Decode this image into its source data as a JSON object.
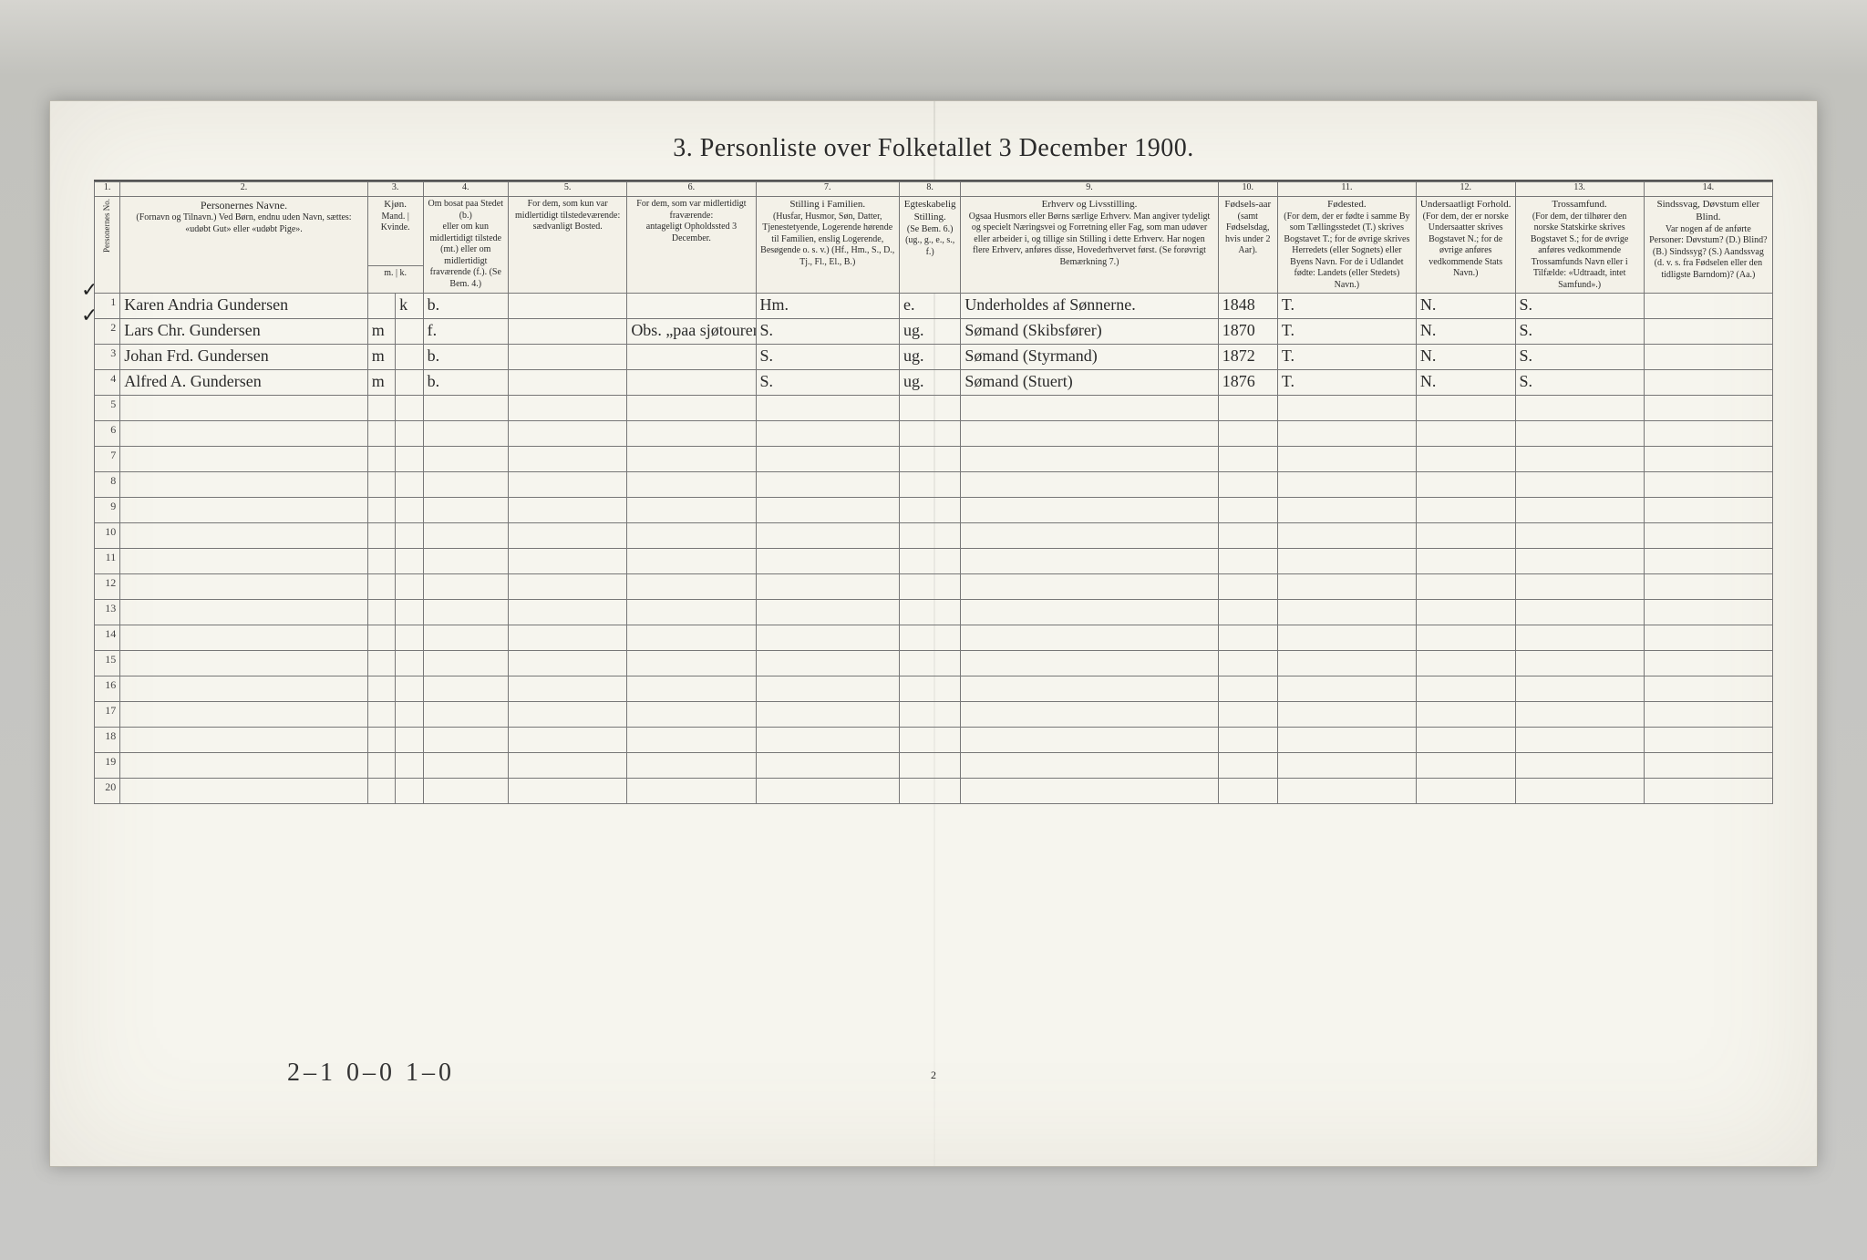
{
  "document": {
    "title": "3. Personliste over Folketallet 3 December 1900.",
    "footnote_tally": "2–1    0–0    1–0",
    "page_number": "2",
    "tick_marks": [
      "✓",
      "✓"
    ]
  },
  "columns": {
    "group_numbers": [
      "1.",
      "2.",
      "3.",
      "4.",
      "5.",
      "6.",
      "7.",
      "8.",
      "9.",
      "10.",
      "11.",
      "12.",
      "13.",
      "14."
    ],
    "headers": {
      "c1": "Personernes No.",
      "c2_title": "Personernes Navne.",
      "c2_sub": "(Fornavn og Tilnavn.)\nVed Børn, endnu uden Navn, sættes: «udøbt Gut» eller «udøbt Pige».",
      "c3_title": "Kjøn.",
      "c3_sub": "Mand. | Kvinde.",
      "c3_foot": "m. | k.",
      "c4_title": "Om bosat paa Stedet (b.)",
      "c4_sub": "eller om kun midlertidigt tilstede (mt.) eller om midlertidigt fraværende (f.). (Se Bem. 4.)",
      "c5_title": "For dem, som kun var midlertidigt tilstedeværende:",
      "c5_sub": "sædvanligt Bosted.",
      "c6_title": "For dem, som var midlertidigt fraværende:",
      "c6_sub": "antageligt Opholdssted 3 December.",
      "c7_title": "Stilling i Familien.",
      "c7_sub": "(Husfar, Husmor, Søn, Datter, Tjenestetyende, Logerende hørende til Familien, enslig Logerende, Besøgende o. s. v.)\n(Hf., Hm., S., D., Tj., Fl., El., B.)",
      "c8_title": "Egteskabelig Stilling.",
      "c8_sub": "(Se Bem. 6.)\n(ug., g., e., s., f.)",
      "c9_title": "Erhverv og Livsstilling.",
      "c9_sub": "Ogsaa Husmors eller Børns særlige Erhverv. Man angiver tydeligt og specielt Næringsvei og Forretning eller Fag, som man udøver eller arbeider i, og tillige sin Stilling i dette Erhverv. Har nogen flere Erhverv, anføres disse, Hovederhvervet først.\n(Se forøvrigt Bemærkning 7.)",
      "c10_title": "Fødsels-aar",
      "c10_sub": "(samt Fødselsdag, hvis under 2 Aar).",
      "c11_title": "Fødested.",
      "c11_sub": "(For dem, der er fødte i samme By som Tællingsstedet (T.) skrives Bogstavet T.; for de øvrige skrives Herredets (eller Sognets) eller Byens Navn. For de i Udlandet fødte: Landets (eller Stedets) Navn.)",
      "c12_title": "Undersaatligt Forhold.",
      "c12_sub": "(For dem, der er norske Undersaatter skrives Bogstavet N.; for de øvrige anføres vedkommende Stats Navn.)",
      "c13_title": "Trossamfund.",
      "c13_sub": "(For dem, der tilhører den norske Statskirke skrives Bogstavet S.; for de øvrige anføres vedkommende Trossamfunds Navn eller i Tilfælde: «Udtraadt, intet Samfund».)",
      "c14_title": "Sindssvag, Døvstum eller Blind.",
      "c14_sub": "Var nogen af de anførte Personer: Døvstum? (D.) Blind? (B.) Sindssyg? (S.) Aandssvag (d. v. s. fra Fødselen eller den tidligste Barndom)? (Aa.)"
    }
  },
  "rows": [
    {
      "no": "1",
      "name": "Karen Andria Gundersen",
      "sex_m": "",
      "sex_k": "k",
      "bosat": "b.",
      "c5": "",
      "c6": "",
      "c7": "Hm.",
      "c8": "e.",
      "c9": "Underholdes af Sønnerne.",
      "c10": "1848",
      "c11": "T.",
      "c12": "N.",
      "c13": "S.",
      "c14": ""
    },
    {
      "no": "2",
      "name": "Lars Chr. Gundersen",
      "sex_m": "m",
      "sex_k": "",
      "bosat": "f.",
      "c5": "",
      "c6": "Obs. „paa sjøtourer“ Sidny",
      "c7": "S.",
      "c8": "ug.",
      "c9": "Sømand (Skibsfører)",
      "c10": "1870",
      "c11": "T.",
      "c12": "N.",
      "c13": "S.",
      "c14": ""
    },
    {
      "no": "3",
      "name": "Johan Frd. Gundersen",
      "sex_m": "m",
      "sex_k": "",
      "bosat": "b.",
      "c5": "",
      "c6": "",
      "c7": "S.",
      "c8": "ug.",
      "c9": "Sømand (Styrmand)",
      "c10": "1872",
      "c11": "T.",
      "c12": "N.",
      "c13": "S.",
      "c14": ""
    },
    {
      "no": "4",
      "name": "Alfred A. Gundersen",
      "sex_m": "m",
      "sex_k": "",
      "bosat": "b.",
      "c5": "",
      "c6": "",
      "c7": "S.",
      "c8": "ug.",
      "c9": "Sømand (Stuert)",
      "c10": "1876",
      "c11": "T.",
      "c12": "N.",
      "c13": "S.",
      "c14": ""
    }
  ],
  "empty_row_count": 16,
  "style": {
    "paper_bg": "#f6f5ee",
    "border_color": "#777",
    "title_fontsize": 28,
    "header_fontsize": 10,
    "data_fontsize": 18
  }
}
